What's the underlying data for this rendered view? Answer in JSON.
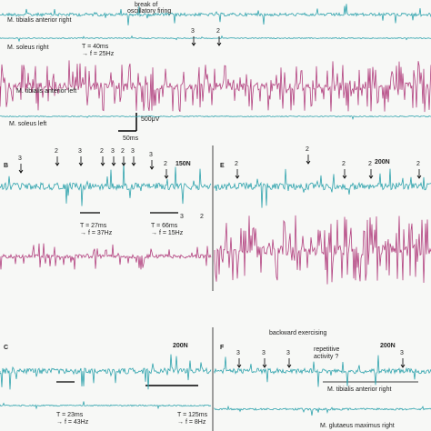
{
  "panels": [
    {
      "labels": [
        "M. tibialis anterior right",
        "break of",
        "oscillatory firing",
        "3",
        "2",
        "M. soleus right",
        "T = 40ms",
        "→ f = 25Hz",
        "M. tibialis anterior left",
        "M. soleus left",
        "500μV",
        "50ms"
      ]
    },
    {
      "labels": [
        "B",
        "3",
        "2",
        "3",
        "2",
        "3",
        "2",
        "3",
        "3",
        "2",
        "150N",
        "T = 27ms",
        "→ f = 37Hz",
        "T = 66ms",
        "→ f = 15Hz",
        "3",
        "2"
      ]
    },
    {
      "labels": [
        "E",
        "2",
        "2",
        "2",
        "2",
        "2",
        "200N"
      ]
    },
    {
      "labels": [
        "C",
        "200N",
        "T = 23ms",
        "→ f = 43Hz",
        "T = 125ms",
        "→ f = 8Hz"
      ]
    },
    {
      "labels": [
        "F",
        "backward exercising",
        "3",
        "3",
        "3",
        "repetitive",
        "activity ?",
        "200N",
        "3",
        "M. tibialis anterior right",
        "M. glutaeus maximus right"
      ]
    }
  ]
}
